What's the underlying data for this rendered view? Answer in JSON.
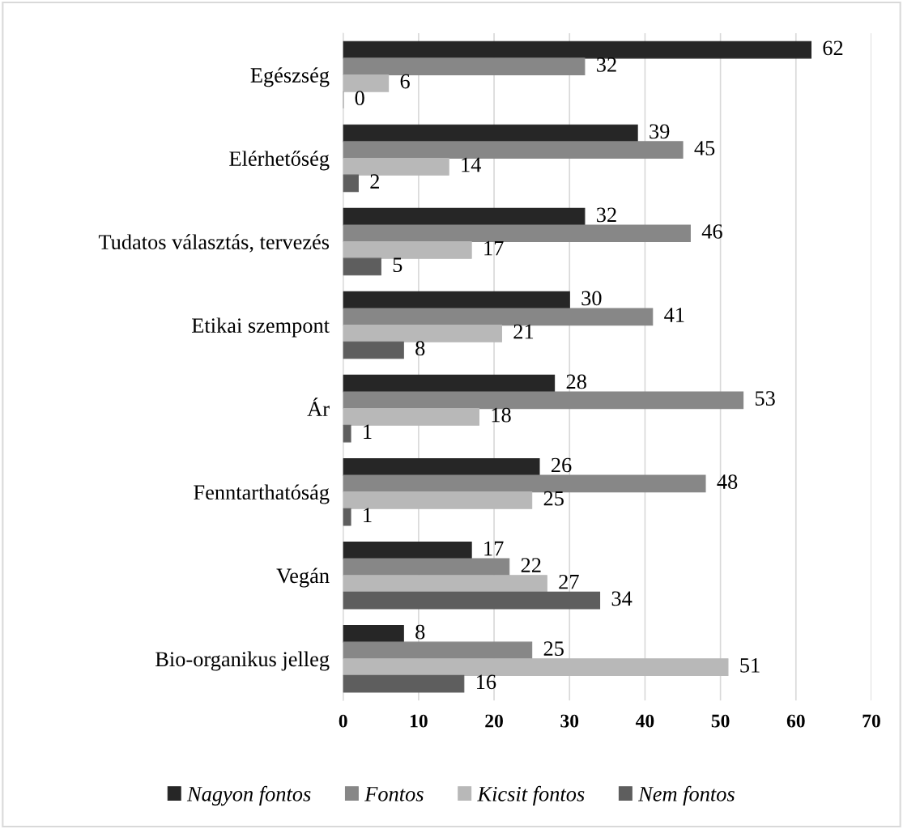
{
  "chart_data": {
    "type": "bar",
    "orientation": "horizontal",
    "categories": [
      "Egészség",
      "Elérhetőség",
      "Tudatos választás, tervezés",
      "Etikai szempont",
      "Ár",
      "Fenntarthatóság",
      "Vegán",
      "Bio-organikus jelleg"
    ],
    "series": [
      {
        "name": "Nagyon fontos",
        "color": "#262626",
        "values": [
          62,
          39,
          32,
          30,
          28,
          26,
          17,
          8
        ]
      },
      {
        "name": "Fontos",
        "color": "#878787",
        "values": [
          32,
          45,
          46,
          41,
          53,
          48,
          22,
          25
        ]
      },
      {
        "name": "Kicsit fontos",
        "color": "#b8b8b8",
        "values": [
          6,
          14,
          17,
          21,
          18,
          25,
          27,
          51
        ]
      },
      {
        "name": "Nem fontos",
        "color": "#5e5e5e",
        "values": [
          0,
          2,
          5,
          8,
          1,
          1,
          34,
          16
        ]
      }
    ],
    "xlim": [
      0,
      70
    ],
    "xticks": [
      0,
      10,
      20,
      30,
      40,
      50,
      60,
      70
    ],
    "grid": "x",
    "legend": "bottom",
    "data_labels": true
  }
}
